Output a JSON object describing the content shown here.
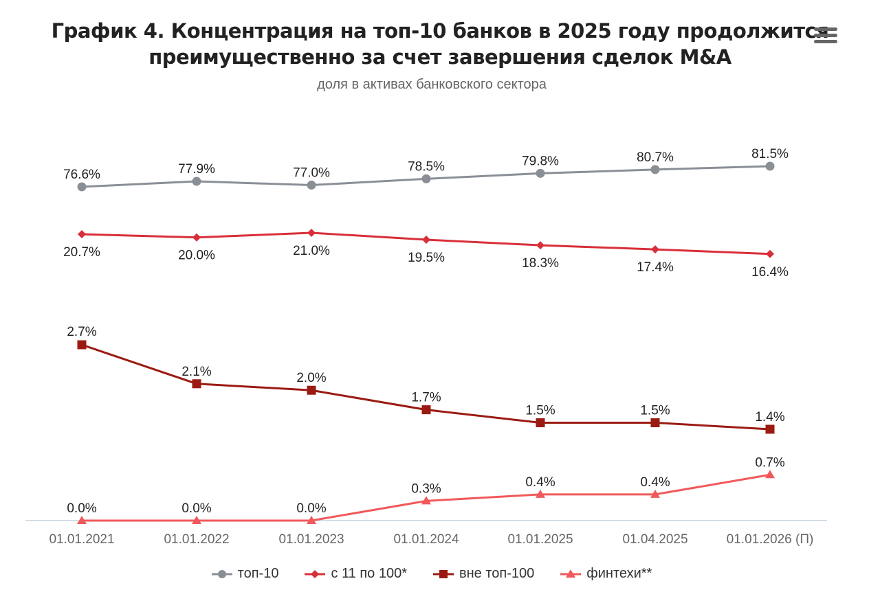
{
  "title_line1": "График 4. Концентрация на топ-10 банков в 2025 году продолжится",
  "title_line2": "преимущественно за счет завершения сделок M&A",
  "subtitle": "доля в активах банковского сектора",
  "menu_icon": "hamburger-menu-icon",
  "chart_data": {
    "type": "line",
    "categories": [
      "01.01.2021",
      "01.01.2022",
      "01.01.2023",
      "01.01.2024",
      "01.01.2025",
      "01.04.2025",
      "01.01.2026 (П)"
    ],
    "series": [
      {
        "name": "топ-10",
        "values": [
          76.6,
          77.9,
          77.0,
          78.5,
          79.8,
          80.7,
          81.5
        ],
        "labels": [
          "76.6%",
          "77.9%",
          "77.0%",
          "78.5%",
          "79.8%",
          "80.7%",
          "81.5%"
        ],
        "color": "#8a8f96",
        "marker": "circle"
      },
      {
        "name": "с 11 по 100*",
        "values": [
          20.7,
          20.0,
          21.0,
          19.5,
          18.3,
          17.4,
          16.4
        ],
        "labels": [
          "20.7%",
          "20.0%",
          "21.0%",
          "19.5%",
          "18.3%",
          "17.4%",
          "16.4%"
        ],
        "color": "#d82f3a",
        "marker": "diamond"
      },
      {
        "name": "вне топ-100",
        "values": [
          2.7,
          2.1,
          2.0,
          1.7,
          1.5,
          1.5,
          1.4
        ],
        "labels": [
          "2.7%",
          "2.1%",
          "2.0%",
          "1.7%",
          "1.5%",
          "1.5%",
          "1.4%"
        ],
        "color": "#9b1b13",
        "marker": "square"
      },
      {
        "name": "финтехи**",
        "values": [
          0.0,
          0.0,
          0.0,
          0.3,
          0.4,
          0.4,
          0.7
        ],
        "labels": [
          "0.0%",
          "0.0%",
          "0.0%",
          "0.3%",
          "0.4%",
          "0.4%",
          "0.7%"
        ],
        "color": "#f0595b",
        "marker": "triangle"
      }
    ],
    "legend_position": "bottom",
    "grid": false
  }
}
